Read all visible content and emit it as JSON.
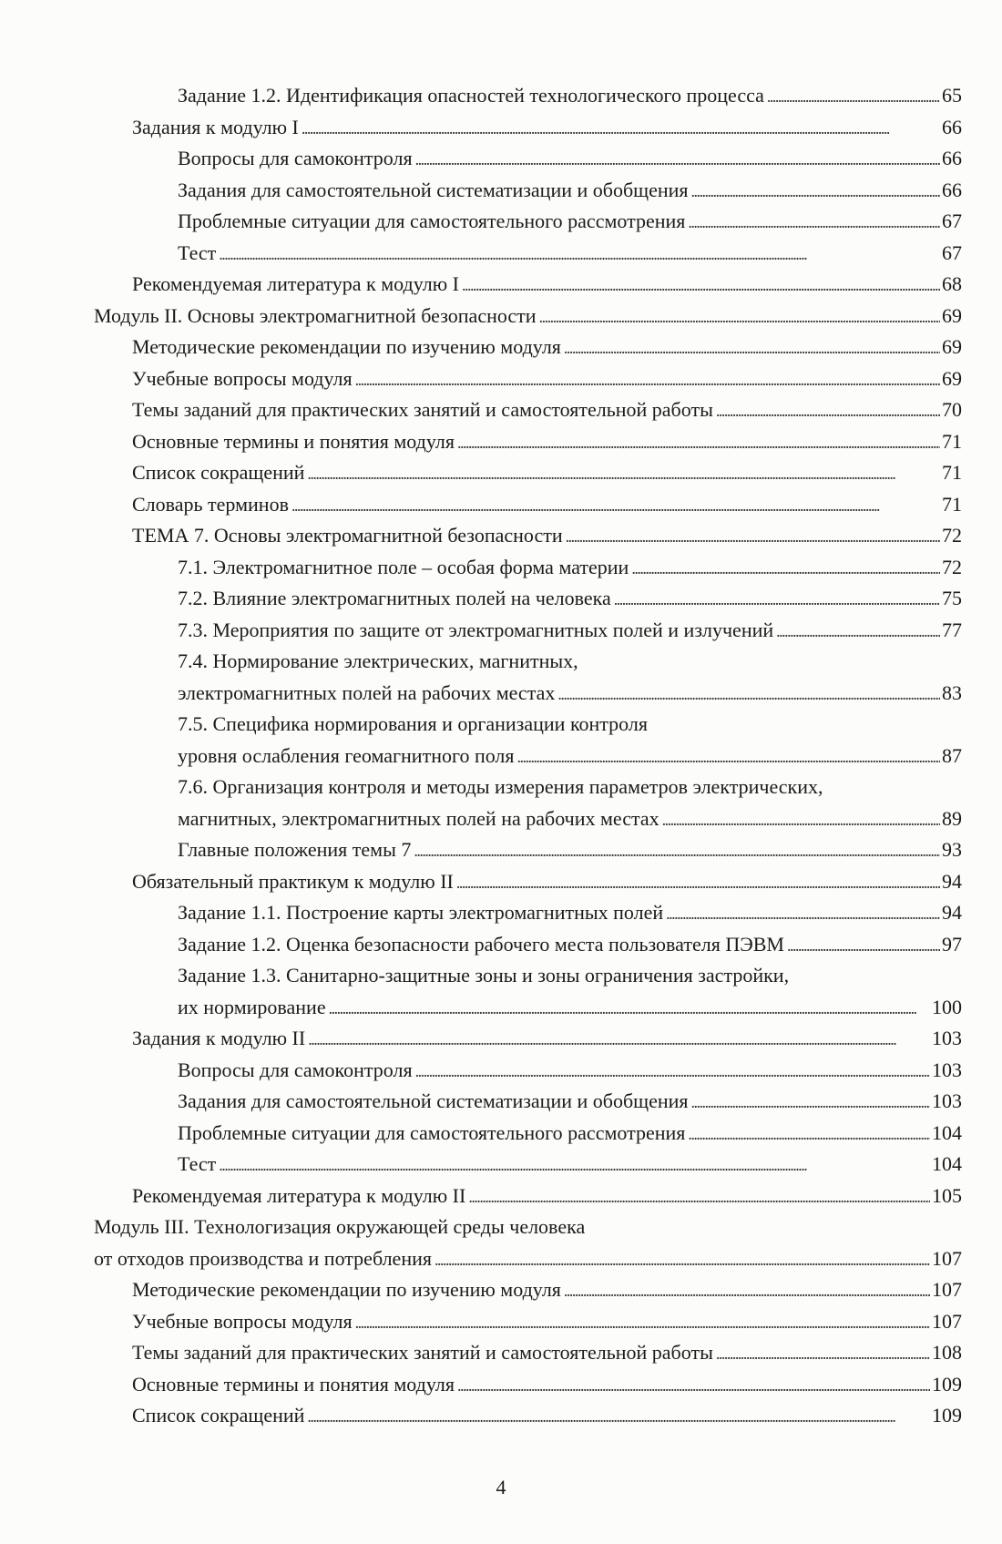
{
  "toc": [
    {
      "level": 2,
      "lines": [
        "Задание 1.2. Идентификация опасностей технологического процесса"
      ],
      "page": "65"
    },
    {
      "level": 1,
      "lines": [
        "Задания к модулю I"
      ],
      "page": "66"
    },
    {
      "level": 2,
      "lines": [
        "Вопросы для самоконтроля"
      ],
      "page": "66"
    },
    {
      "level": 2,
      "lines": [
        "Задания для самостоятельной систематизации и обобщения"
      ],
      "page": "66"
    },
    {
      "level": 2,
      "lines": [
        "Проблемные ситуации для самостоятельного рассмотрения"
      ],
      "page": "67"
    },
    {
      "level": 2,
      "lines": [
        "Тест"
      ],
      "page": "67"
    },
    {
      "level": 1,
      "lines": [
        "Рекомендуемая литература к модулю I"
      ],
      "page": "68"
    },
    {
      "level": 0,
      "lines": [
        "Модуль II. Основы электромагнитной безопасности"
      ],
      "page": "69"
    },
    {
      "level": 1,
      "lines": [
        "Методические рекомендации по изучению модуля"
      ],
      "page": "69"
    },
    {
      "level": 1,
      "lines": [
        "Учебные вопросы модуля"
      ],
      "page": "69"
    },
    {
      "level": 1,
      "lines": [
        "Темы заданий для практических занятий и самостоятельной работы"
      ],
      "page": "70"
    },
    {
      "level": 1,
      "lines": [
        "Основные термины и понятия модуля"
      ],
      "page": "71"
    },
    {
      "level": 1,
      "lines": [
        "Список сокращений"
      ],
      "page": "71"
    },
    {
      "level": 1,
      "lines": [
        "Словарь терминов"
      ],
      "page": "71"
    },
    {
      "level": 1,
      "lines": [
        "ТЕМА 7. Основы электромагнитной безопасности"
      ],
      "page": "72"
    },
    {
      "level": 2,
      "lines": [
        "7.1. Электромагнитное поле – особая форма материи"
      ],
      "page": "72"
    },
    {
      "level": 2,
      "lines": [
        "7.2. Влияние электромагнитных полей на человека"
      ],
      "page": "75"
    },
    {
      "level": 2,
      "lines": [
        "7.3. Мероприятия по защите от электромагнитных полей и излучений"
      ],
      "page": "77"
    },
    {
      "level": 2,
      "lines": [
        "7.4. Нормирование электрических, магнитных,",
        "электромагнитных полей на рабочих местах"
      ],
      "page": "83"
    },
    {
      "level": 2,
      "lines": [
        "7.5. Специфика нормирования и организации контроля",
        "уровня ослабления геомагнитного поля"
      ],
      "page": "87"
    },
    {
      "level": 2,
      "lines": [
        "7.6. Организация контроля и методы измерения параметров электрических,",
        "магнитных, электромагнитных полей на рабочих местах"
      ],
      "page": "89"
    },
    {
      "level": 2,
      "lines": [
        "Главные положения темы 7"
      ],
      "page": "93"
    },
    {
      "level": 1,
      "lines": [
        "Обязательный практикум к модулю II"
      ],
      "page": "94"
    },
    {
      "level": 2,
      "lines": [
        "Задание 1.1. Построение карты электромагнитных полей"
      ],
      "page": "94"
    },
    {
      "level": 2,
      "lines": [
        "Задание 1.2. Оценка безопасности рабочего места пользователя ПЭВМ"
      ],
      "page": "97"
    },
    {
      "level": 2,
      "lines": [
        "Задание 1.3. Санитарно-защитные зоны и зоны ограничения застройки,",
        "их нормирование"
      ],
      "page": "100"
    },
    {
      "level": 1,
      "lines": [
        "Задания к модулю II"
      ],
      "page": "103"
    },
    {
      "level": 2,
      "lines": [
        "Вопросы для самоконтроля"
      ],
      "page": "103"
    },
    {
      "level": 2,
      "lines": [
        "Задания для самостоятельной систематизации и обобщения"
      ],
      "page": "103"
    },
    {
      "level": 2,
      "lines": [
        "Проблемные ситуации для самостоятельного рассмотрения"
      ],
      "page": "104"
    },
    {
      "level": 2,
      "lines": [
        "Тест"
      ],
      "page": "104"
    },
    {
      "level": 1,
      "lines": [
        "Рекомендуемая литература к модулю II"
      ],
      "page": "105"
    },
    {
      "level": 0,
      "lines": [
        "Модуль III. Технологизация окружающей среды человека",
        "от отходов производства и потребления"
      ],
      "page": "107"
    },
    {
      "level": 1,
      "lines": [
        "Методические рекомендации по изучению модуля"
      ],
      "page": "107"
    },
    {
      "level": 1,
      "lines": [
        "Учебные вопросы модуля"
      ],
      "page": "107"
    },
    {
      "level": 1,
      "lines": [
        "Темы заданий для практических занятий и самостоятельной работы"
      ],
      "page": "108"
    },
    {
      "level": 1,
      "lines": [
        "Основные термины и понятия модуля"
      ],
      "page": "109"
    },
    {
      "level": 1,
      "lines": [
        "Список сокращений"
      ],
      "page": "109"
    }
  ],
  "page_number": "4"
}
